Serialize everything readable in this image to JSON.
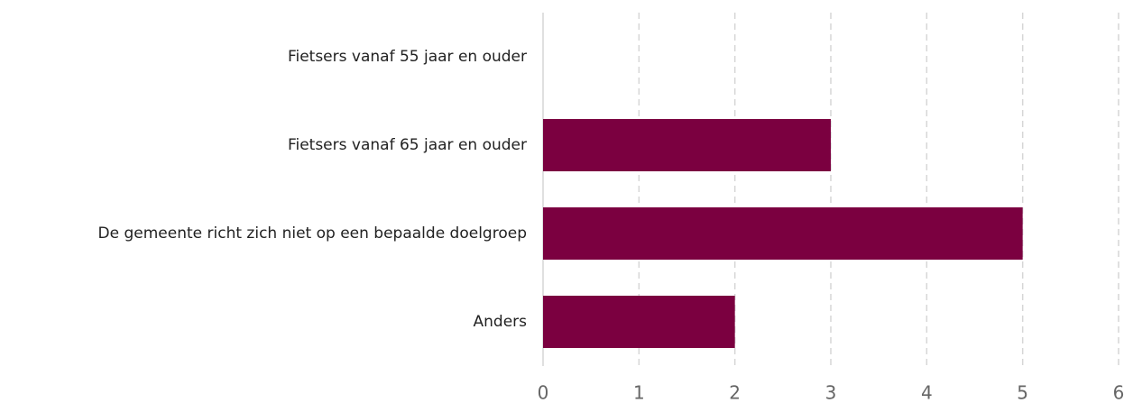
{
  "chart_data": {
    "type": "bar",
    "orientation": "horizontal",
    "categories": [
      "Fietsers vanaf 55 jaar en ouder",
      "Fietsers vanaf 65 jaar en ouder",
      "De gemeente richt zich niet op een bepaalde doelgroep",
      "Anders"
    ],
    "values": [
      0,
      3,
      5,
      2
    ],
    "color": "#7b0040",
    "xlim": [
      0,
      6
    ],
    "xticks": [
      0,
      1,
      2,
      3,
      4,
      5,
      6
    ],
    "grid": true
  }
}
